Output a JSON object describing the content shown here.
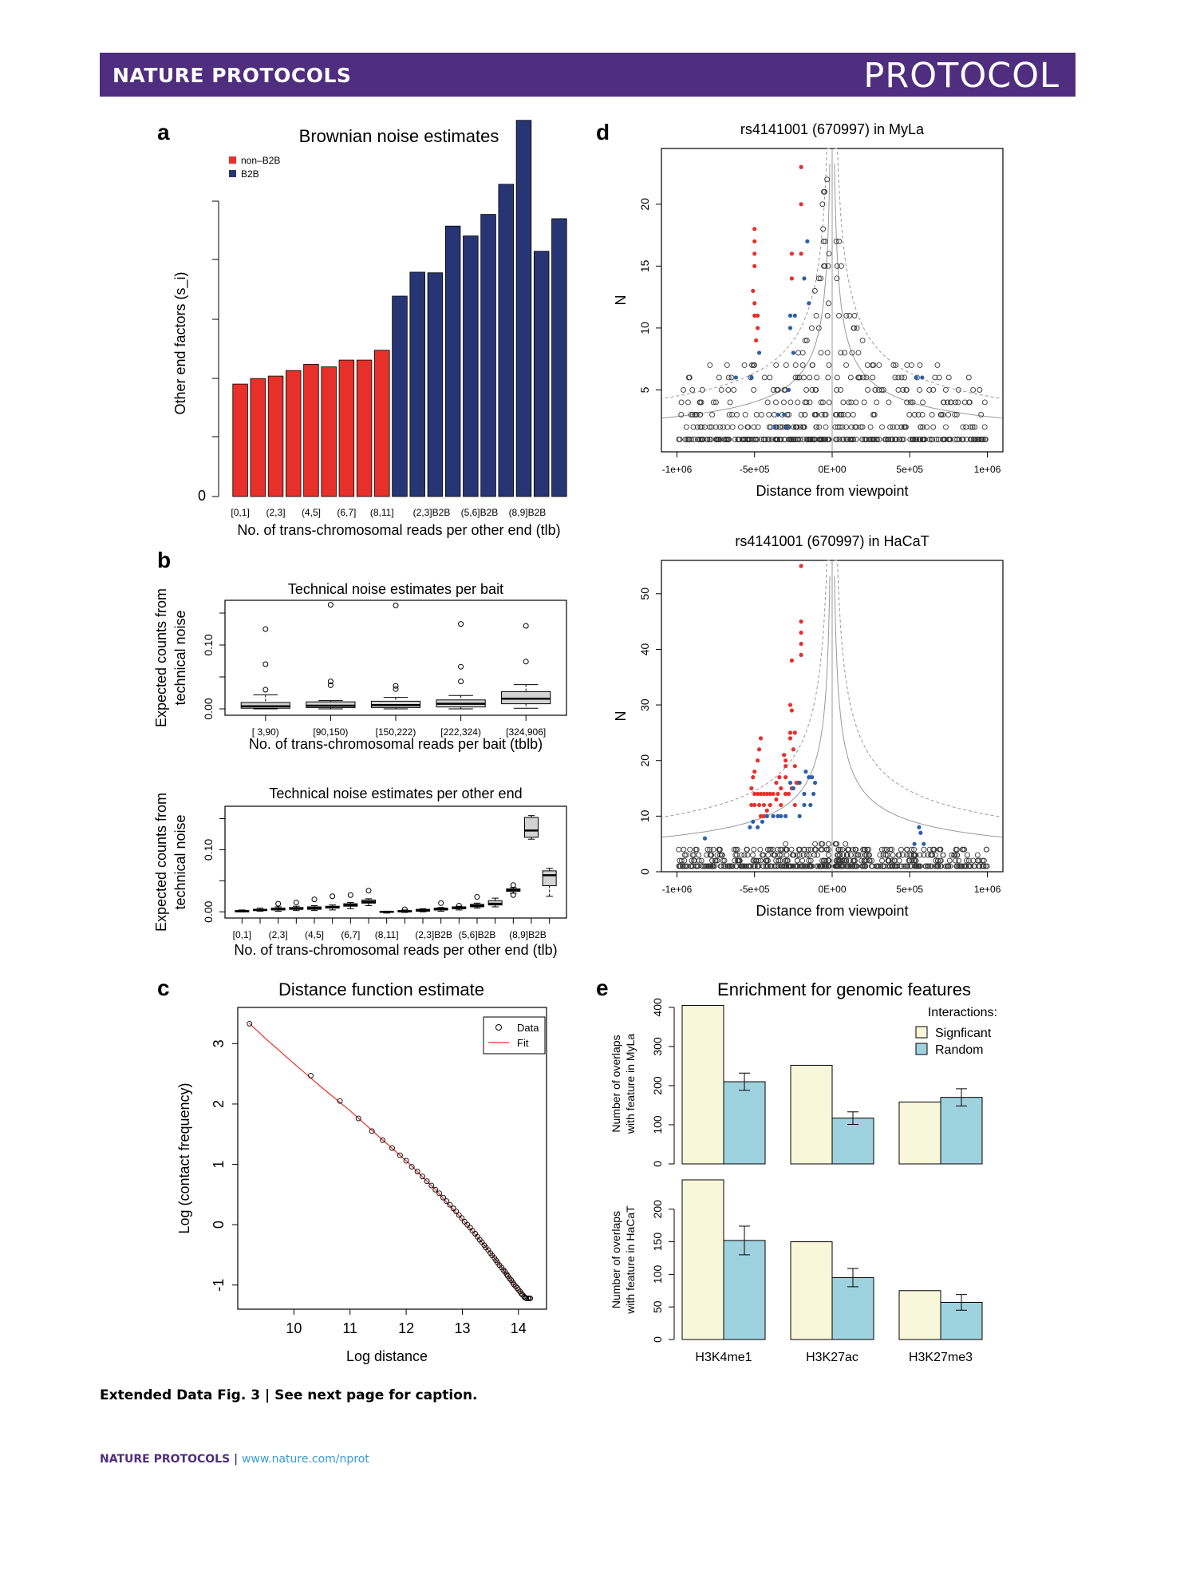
{
  "header": {
    "journal": "NATURE PROTOCOLS",
    "section": "PROTOCOL"
  },
  "panel_labels": {
    "a": "a",
    "b": "b",
    "c": "c",
    "d": "d",
    "e": "e"
  },
  "caption": {
    "bold": "Extended Data Fig. 3 |",
    "rest": " See next page for caption."
  },
  "footer": {
    "journal": "NATURE PROTOCOLS",
    "sep": " | ",
    "url": "www.nature.com/nprot"
  },
  "chart_data": [
    {
      "id": "a",
      "type": "bar",
      "title": "Brownian noise estimates",
      "xlabel": "No. of trans-chromosomal reads per other end (tlb)",
      "ylabel": "Other end factors (s_i)",
      "ytick_labels": [
        "0"
      ],
      "ylim": [
        0,
        6
      ],
      "legend": [
        {
          "name": "non–B2B",
          "color": "#e8302b"
        },
        {
          "name": "B2B",
          "color": "#283575"
        }
      ],
      "tick_labels": [
        "[0,1]",
        "(2,3]",
        "(4,5]",
        "(6,7]",
        "(8,11]",
        "(2,3]B2B",
        "(5,6]B2B",
        "(8,9]B2B"
      ],
      "values": [
        1.83,
        1.92,
        1.96,
        2.05,
        2.15,
        2.11,
        2.22,
        2.22,
        2.38,
        3.26,
        3.65,
        3.64,
        4.4,
        4.24,
        4.59,
        5.08,
        6.12,
        3.99,
        4.52
      ],
      "groups": [
        "non-B2B",
        "non-B2B",
        "non-B2B",
        "non-B2B",
        "non-B2B",
        "non-B2B",
        "non-B2B",
        "non-B2B",
        "non-B2B",
        "B2B",
        "B2B",
        "B2B",
        "B2B",
        "B2B",
        "B2B",
        "B2B",
        "B2B",
        "B2B",
        "B2B"
      ]
    },
    {
      "id": "b1",
      "type": "box",
      "title": "Technical noise estimates per bait",
      "xlabel": "No. of trans-chromosomal reads per bait (tblb)",
      "ylabel": "Expected counts from technical noise",
      "ylim": [
        -0.01,
        0.17
      ],
      "yticks": [
        0.0,
        0.1
      ],
      "ytick_labels": [
        "0.00",
        "0.10"
      ],
      "categories": [
        "[ 3,90)",
        "[90,150)",
        "[150,222)",
        "[222,324)",
        "[324,906]"
      ],
      "boxes": [
        {
          "q1": 0.001,
          "med": 0.004,
          "q3": 0.01,
          "wlo": 0.0,
          "whi": 0.022,
          "outliers": [
            0.03,
            0.07,
            0.125
          ]
        },
        {
          "q1": 0.002,
          "med": 0.005,
          "q3": 0.011,
          "wlo": 0.0,
          "whi": 0.013,
          "outliers": [
            0.037,
            0.043,
            0.163
          ]
        },
        {
          "q1": 0.002,
          "med": 0.006,
          "q3": 0.012,
          "wlo": 0.0,
          "whi": 0.018,
          "outliers": [
            0.031,
            0.036,
            0.162
          ]
        },
        {
          "q1": 0.003,
          "med": 0.008,
          "q3": 0.014,
          "wlo": 0.0,
          "whi": 0.021,
          "outliers": [
            0.043,
            0.066,
            0.133
          ]
        },
        {
          "q1": 0.008,
          "med": 0.016,
          "q3": 0.027,
          "wlo": 0.001,
          "whi": 0.038,
          "outliers": [
            0.074,
            0.13
          ]
        }
      ]
    },
    {
      "id": "b2",
      "type": "box",
      "title": "Technical noise estimates per other end",
      "xlabel": "No. of trans-chromosomal reads per other end (tlb)",
      "ylabel": "Expected counts from technical noise",
      "ylim": [
        -0.01,
        0.17
      ],
      "yticks": [
        0.0,
        0.1
      ],
      "ytick_labels": [
        "0.00",
        "0.10"
      ],
      "tick_labels": [
        "[0,1]",
        "(2,3]",
        "(4,5]",
        "(6,7]",
        "(8,11]",
        "(2,3]B2B",
        "(5,6]B2B",
        "(8,9]B2B"
      ],
      "boxes": [
        {
          "q1": 0.0,
          "med": 0.001,
          "q3": 0.002,
          "wlo": 0.0,
          "whi": 0.003,
          "outliers": []
        },
        {
          "q1": 0.002,
          "med": 0.003,
          "q3": 0.004,
          "wlo": 0.001,
          "whi": 0.006,
          "outliers": []
        },
        {
          "q1": 0.003,
          "med": 0.004,
          "q3": 0.006,
          "wlo": 0.001,
          "whi": 0.008,
          "outliers": [
            0.013
          ]
        },
        {
          "q1": 0.004,
          "med": 0.005,
          "q3": 0.007,
          "wlo": 0.002,
          "whi": 0.009,
          "outliers": [
            0.015
          ]
        },
        {
          "q1": 0.004,
          "med": 0.006,
          "q3": 0.008,
          "wlo": 0.002,
          "whi": 0.01,
          "outliers": [
            0.02
          ]
        },
        {
          "q1": 0.006,
          "med": 0.007,
          "q3": 0.009,
          "wlo": 0.003,
          "whi": 0.011,
          "outliers": [
            0.025
          ]
        },
        {
          "q1": 0.009,
          "med": 0.011,
          "q3": 0.013,
          "wlo": 0.005,
          "whi": 0.015,
          "outliers": [
            0.027
          ]
        },
        {
          "q1": 0.014,
          "med": 0.016,
          "q3": 0.019,
          "wlo": 0.01,
          "whi": 0.021,
          "outliers": [
            0.034
          ]
        },
        {
          "q1": -0.001,
          "med": 0.0,
          "q3": 0.001,
          "wlo": -0.002,
          "whi": 0.001,
          "outliers": []
        },
        {
          "q1": 0.0,
          "med": 0.001,
          "q3": 0.002,
          "wlo": -0.001,
          "whi": 0.003,
          "outliers": [
            0.004
          ]
        },
        {
          "q1": 0.001,
          "med": 0.002,
          "q3": 0.004,
          "wlo": 0.0,
          "whi": 0.005,
          "outliers": []
        },
        {
          "q1": 0.003,
          "med": 0.004,
          "q3": 0.006,
          "wlo": 0.001,
          "whi": 0.007,
          "outliers": [
            0.014
          ]
        },
        {
          "q1": 0.005,
          "med": 0.006,
          "q3": 0.008,
          "wlo": 0.003,
          "whi": 0.009,
          "outliers": [
            0.01
          ]
        },
        {
          "q1": 0.008,
          "med": 0.01,
          "q3": 0.012,
          "wlo": 0.006,
          "whi": 0.014,
          "outliers": [
            0.024
          ]
        },
        {
          "q1": 0.011,
          "med": 0.013,
          "q3": 0.018,
          "wlo": 0.008,
          "whi": 0.022,
          "outliers": []
        },
        {
          "q1": 0.033,
          "med": 0.035,
          "q3": 0.037,
          "wlo": 0.03,
          "whi": 0.039,
          "outliers": [
            0.027,
            0.043
          ]
        },
        {
          "q1": 0.12,
          "med": 0.131,
          "q3": 0.152,
          "wlo": 0.117,
          "whi": 0.155,
          "outliers": []
        },
        {
          "q1": 0.042,
          "med": 0.059,
          "q3": 0.066,
          "wlo": 0.025,
          "whi": 0.07,
          "outliers": []
        }
      ]
    },
    {
      "id": "c",
      "type": "scatter",
      "title": "Distance function estimate",
      "xlabel": "Log distance",
      "ylabel": "Log (contact frequency)",
      "xlim": [
        9.0,
        14.5
      ],
      "ylim": [
        -1.4,
        3.6
      ],
      "xticks": [
        10,
        11,
        12,
        13,
        14
      ],
      "yticks": [
        -1,
        0,
        1,
        2,
        3
      ],
      "legend": [
        {
          "name": "Data",
          "symbol": "circle"
        },
        {
          "name": "Fit",
          "color": "#e8302b"
        }
      ],
      "x": [
        9.21,
        10.3,
        10.82,
        11.15,
        11.39,
        11.58,
        11.75,
        11.89,
        12.0,
        12.1,
        12.2,
        12.29,
        12.37,
        12.45,
        12.52,
        12.59,
        12.66,
        12.72,
        12.78,
        12.84,
        12.89,
        12.94,
        12.99,
        13.04,
        13.09,
        13.14,
        13.18,
        13.23,
        13.27,
        13.31,
        13.35,
        13.39,
        13.42,
        13.46,
        13.5,
        13.53,
        13.57,
        13.6,
        13.63,
        13.66,
        13.7,
        13.73,
        13.76,
        13.79,
        13.81,
        13.84,
        13.87,
        13.9,
        13.92,
        13.95,
        13.98,
        14.0,
        14.03,
        14.05,
        14.07,
        14.1,
        14.12,
        14.14,
        14.17,
        14.19,
        14.21
      ],
      "y": [
        3.33,
        2.47,
        2.05,
        1.76,
        1.55,
        1.4,
        1.27,
        1.15,
        1.06,
        0.96,
        0.88,
        0.8,
        0.72,
        0.65,
        0.58,
        0.52,
        0.45,
        0.39,
        0.33,
        0.27,
        0.22,
        0.16,
        0.11,
        0.05,
        0.0,
        -0.05,
        -0.1,
        -0.15,
        -0.2,
        -0.25,
        -0.29,
        -0.34,
        -0.38,
        -0.42,
        -0.47,
        -0.51,
        -0.55,
        -0.59,
        -0.63,
        -0.67,
        -0.71,
        -0.75,
        -0.78,
        -0.82,
        -0.85,
        -0.89,
        -0.92,
        -0.96,
        -0.99,
        -1.02,
        -1.05,
        -1.08,
        -1.11,
        -1.14,
        -1.16,
        -1.19,
        -1.21,
        -1.22,
        -1.22,
        -1.22,
        -1.22
      ],
      "fit_x": [
        9.2,
        9.5,
        10.0,
        10.5,
        11.0,
        11.5,
        12.0,
        12.5,
        13.0,
        13.5,
        14.0,
        14.2
      ],
      "fit_y": [
        3.34,
        3.08,
        2.67,
        2.27,
        1.89,
        1.47,
        1.06,
        0.6,
        0.09,
        -0.46,
        -1.08,
        -1.25
      ]
    },
    {
      "id": "d1",
      "type": "scatter",
      "title": "rs4141001 (670997) in MyLa",
      "xlabel": "Distance from viewpoint",
      "ylabel": "N",
      "xlim": [
        -1100000,
        1100000
      ],
      "ylim": [
        0,
        24.5
      ],
      "xticks": [
        -1000000,
        -500000,
        0,
        500000,
        1000000
      ],
      "xtick_labels": [
        "-1e+06",
        "-5e+05",
        "0E+00",
        "5e+05",
        "1e+06"
      ],
      "yticks": [
        5,
        10,
        15,
        20
      ],
      "ytick_labels": [
        "5",
        "10",
        "15",
        "20"
      ],
      "series_colors": {
        "black": "#333333",
        "red": "#e8302b",
        "blue": "#2d5faa"
      },
      "red_points": [
        [
          -500000,
          18
        ],
        [
          -500000,
          17
        ],
        [
          -500000,
          16
        ],
        [
          -500000,
          15
        ],
        [
          -510000,
          13
        ],
        [
          -500000,
          12
        ],
        [
          -480000,
          11
        ],
        [
          -500000,
          11
        ],
        [
          -480000,
          10
        ],
        [
          -490000,
          9
        ],
        [
          -200000,
          23
        ],
        [
          -200000,
          20
        ],
        [
          -260000,
          16
        ],
        [
          -260000,
          14
        ],
        [
          -200000,
          16
        ]
      ],
      "blue_points": [
        [
          -620000,
          6
        ],
        [
          -520000,
          6
        ],
        [
          -470000,
          8
        ],
        [
          -270000,
          11
        ],
        [
          -270000,
          10
        ],
        [
          -240000,
          11
        ],
        [
          -160000,
          17
        ],
        [
          -180000,
          14
        ],
        [
          -150000,
          12
        ],
        [
          -250000,
          8
        ],
        [
          -290000,
          2
        ],
        [
          -310000,
          3
        ],
        [
          -350000,
          3
        ],
        [
          -370000,
          2
        ],
        [
          -280000,
          5
        ],
        [
          540000,
          6
        ],
        [
          580000,
          6
        ]
      ],
      "black_points_seed": 7,
      "fit_line_color": "#999999"
    },
    {
      "id": "d2",
      "type": "scatter",
      "title": "rs4141001 (670997) in HaCaT",
      "xlabel": "Distance from viewpoint",
      "ylabel": "N",
      "xlim": [
        -1100000,
        1100000
      ],
      "ylim": [
        0,
        56
      ],
      "xticks": [
        -1000000,
        -500000,
        0,
        500000,
        1000000
      ],
      "xtick_labels": [
        "-1e+06",
        "-5e+05",
        "0E+00",
        "5e+05",
        "1e+06"
      ],
      "yticks": [
        0,
        10,
        20,
        30,
        40,
        50
      ],
      "ytick_labels": [
        "0",
        "10",
        "20",
        "30",
        "40",
        "50"
      ],
      "series_colors": {
        "black": "#333333",
        "red": "#e8302b",
        "blue": "#2d5faa"
      },
      "red_points": [
        [
          -200000,
          55
        ],
        [
          -200000,
          45
        ],
        [
          -200000,
          43
        ],
        [
          -200000,
          41
        ],
        [
          -200000,
          39
        ],
        [
          -260000,
          38
        ],
        [
          -270000,
          30
        ],
        [
          -260000,
          29
        ],
        [
          -270000,
          25
        ],
        [
          -240000,
          25
        ],
        [
          -250000,
          22
        ],
        [
          -300000,
          20
        ],
        [
          -300000,
          19
        ],
        [
          -300000,
          17
        ],
        [
          -460000,
          24
        ],
        [
          -470000,
          22
        ],
        [
          -480000,
          20
        ],
        [
          -500000,
          18
        ],
        [
          -510000,
          17
        ],
        [
          -520000,
          15
        ],
        [
          -500000,
          14
        ],
        [
          -480000,
          14
        ],
        [
          -460000,
          14
        ],
        [
          -440000,
          14
        ],
        [
          -420000,
          14
        ],
        [
          -400000,
          14
        ],
        [
          -500000,
          12
        ],
        [
          -470000,
          12
        ],
        [
          -440000,
          12
        ],
        [
          -400000,
          12
        ],
        [
          -380000,
          14
        ],
        [
          -350000,
          14
        ],
        [
          -330000,
          12
        ],
        [
          -300000,
          14
        ],
        [
          -280000,
          14
        ],
        [
          -260000,
          15
        ],
        [
          -230000,
          16
        ],
        [
          -220000,
          16
        ],
        [
          -240000,
          19
        ],
        [
          -270000,
          24
        ],
        [
          -300000,
          14
        ],
        [
          -330000,
          15
        ],
        [
          -360000,
          16
        ],
        [
          -520000,
          12
        ],
        [
          -420000,
          11
        ],
        [
          -440000,
          10
        ],
        [
          -460000,
          10
        ],
        [
          -360000,
          13
        ],
        [
          -340000,
          17
        ],
        [
          -310000,
          21
        ],
        [
          -240000,
          12
        ]
      ],
      "blue_points": [
        [
          -170000,
          18
        ],
        [
          -150000,
          17
        ],
        [
          -130000,
          17
        ],
        [
          -110000,
          16
        ],
        [
          -210000,
          16
        ],
        [
          -180000,
          14
        ],
        [
          -120000,
          14
        ],
        [
          -180000,
          12
        ],
        [
          -140000,
          12
        ],
        [
          -210000,
          10
        ],
        [
          -300000,
          10
        ],
        [
          -330000,
          10
        ],
        [
          -350000,
          10
        ],
        [
          -380000,
          10
        ],
        [
          -420000,
          10
        ],
        [
          -450000,
          9
        ],
        [
          -510000,
          9
        ],
        [
          -480000,
          8
        ],
        [
          -530000,
          8
        ],
        [
          -820000,
          6
        ],
        [
          560000,
          8
        ],
        [
          570000,
          7
        ],
        [
          530000,
          5
        ],
        [
          590000,
          5
        ],
        [
          -250000,
          15
        ],
        [
          -270000,
          16
        ]
      ],
      "black_points_seed": 11,
      "fit_line_color": "#999999"
    },
    {
      "id": "e1",
      "type": "bar",
      "title": "Enrichment for genomic features",
      "ylabel": "Number of overlaps with feature in MyLa",
      "ylim": [
        0,
        410
      ],
      "yticks": [
        0,
        100,
        200,
        300,
        400
      ],
      "ytick_labels": [
        "0",
        "100",
        "200",
        "300",
        "400"
      ],
      "legend_title": "Interactions:",
      "legend": [
        {
          "name": "Signficant",
          "color": "#f8f7da"
        },
        {
          "name": "Random",
          "color": "#9fd2df"
        }
      ],
      "categories": [
        "H3K4me1",
        "H3K27ac",
        "H3K27me3"
      ],
      "series": [
        {
          "name": "Signficant",
          "values": [
            405,
            252,
            158
          ]
        },
        {
          "name": "Random",
          "values": [
            210,
            117,
            170
          ],
          "err": [
            22,
            16,
            22
          ]
        }
      ]
    },
    {
      "id": "e2",
      "type": "bar",
      "ylabel": "Number of overlaps with feature in HaCaT",
      "ylim": [
        0,
        245
      ],
      "yticks": [
        0,
        50,
        100,
        150,
        200
      ],
      "ytick_labels": [
        "0",
        "50",
        "100",
        "150",
        "200"
      ],
      "categories": [
        "H3K4me1",
        "H3K27ac",
        "H3K27me3"
      ],
      "series": [
        {
          "name": "Signficant",
          "values": [
            245,
            150,
            75
          ]
        },
        {
          "name": "Random",
          "values": [
            152,
            95,
            57
          ],
          "err": [
            22,
            14,
            12
          ]
        }
      ]
    }
  ]
}
